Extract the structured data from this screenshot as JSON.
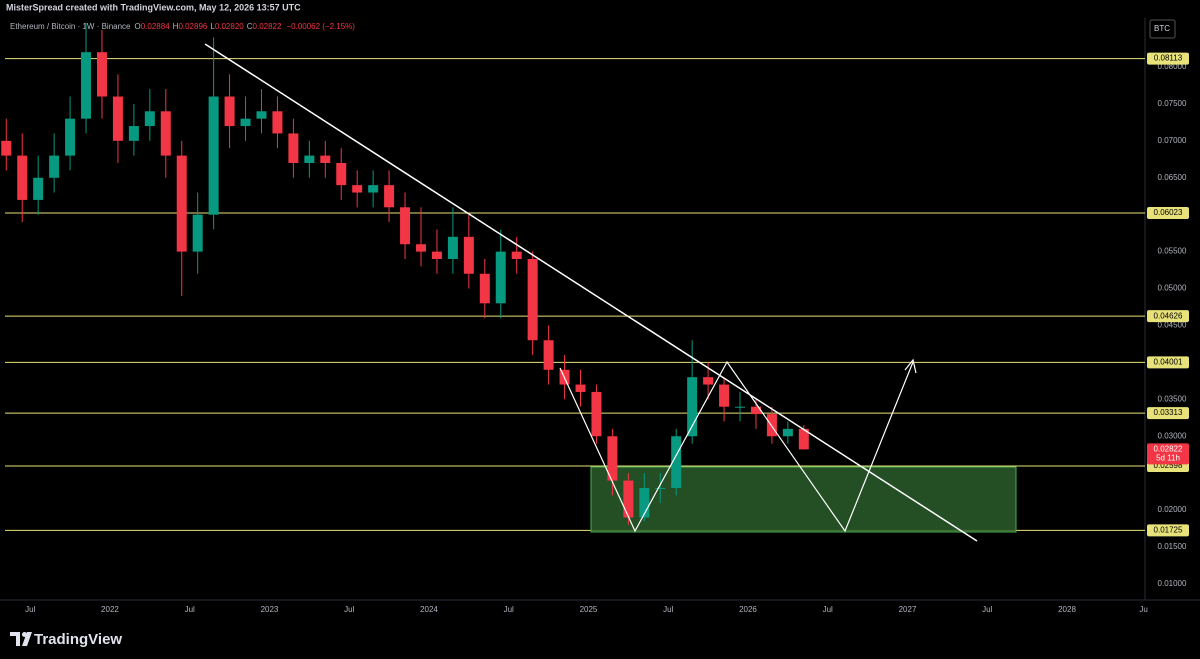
{
  "header": {
    "author_line": "MisterSpread created with TradingView.com, May 12, 2026 13:57 UTC"
  },
  "legend": {
    "symbol": "Ethereum / Bitcoin · 1W · Binance",
    "ohlc": [
      {
        "label": "O",
        "value": "0.02884"
      },
      {
        "label": "H",
        "value": "0.02896"
      },
      {
        "label": "L",
        "value": "0.02820"
      },
      {
        "label": "C",
        "value": "0.02822"
      }
    ],
    "change": "−0.00062 (−2.15%)"
  },
  "currency": "BTC",
  "chart_data": {
    "type": "candlestick",
    "up_color": "#089981",
    "down_color": "#f23645",
    "level_color": "#e8e27a",
    "x": [
      2021.35,
      2021.45,
      2021.55,
      2021.65,
      2021.75,
      2021.85,
      2021.95,
      2022.05,
      2022.15,
      2022.25,
      2022.35,
      2022.45,
      2022.55,
      2022.65,
      2022.75,
      2022.85,
      2022.95,
      2023.05,
      2023.15,
      2023.25,
      2023.35,
      2023.45,
      2023.55,
      2023.65,
      2023.75,
      2023.85,
      2023.95,
      2024.05,
      2024.15,
      2024.25,
      2024.35,
      2024.45,
      2024.55,
      2024.65,
      2024.75,
      2024.85,
      2024.95,
      2025.05,
      2025.15,
      2025.25,
      2025.35,
      2025.45,
      2025.55,
      2025.65,
      2025.75,
      2025.85,
      2025.95,
      2026.05,
      2026.15,
      2026.25,
      2026.35
    ],
    "open": [
      0.07,
      0.068,
      0.062,
      0.065,
      0.068,
      0.073,
      0.082,
      0.076,
      0.07,
      0.072,
      0.074,
      0.068,
      0.055,
      0.06,
      0.076,
      0.072,
      0.073,
      0.074,
      0.071,
      0.067,
      0.068,
      0.067,
      0.064,
      0.063,
      0.064,
      0.061,
      0.056,
      0.055,
      0.054,
      0.057,
      0.052,
      0.048,
      0.055,
      0.054,
      0.043,
      0.039,
      0.037,
      0.036,
      0.03,
      0.024,
      0.019,
      0.023,
      0.023,
      0.03,
      0.038,
      0.037,
      0.034,
      0.034,
      0.033,
      0.03,
      0.031
    ],
    "high": [
      0.073,
      0.071,
      0.068,
      0.071,
      0.076,
      0.086,
      0.085,
      0.079,
      0.075,
      0.077,
      0.077,
      0.07,
      0.063,
      0.084,
      0.079,
      0.076,
      0.077,
      0.076,
      0.073,
      0.07,
      0.07,
      0.069,
      0.066,
      0.066,
      0.066,
      0.063,
      0.061,
      0.058,
      0.061,
      0.06,
      0.054,
      0.058,
      0.057,
      0.055,
      0.045,
      0.041,
      0.039,
      0.037,
      0.031,
      0.025,
      0.025,
      0.025,
      0.031,
      0.043,
      0.04,
      0.038,
      0.036,
      0.035,
      0.034,
      0.032,
      0.0315
    ],
    "low": [
      0.066,
      0.059,
      0.06,
      0.063,
      0.066,
      0.071,
      0.073,
      0.067,
      0.068,
      0.07,
      0.065,
      0.049,
      0.052,
      0.058,
      0.069,
      0.07,
      0.071,
      0.069,
      0.065,
      0.065,
      0.065,
      0.062,
      0.061,
      0.061,
      0.059,
      0.054,
      0.053,
      0.052,
      0.052,
      0.05,
      0.046,
      0.046,
      0.052,
      0.041,
      0.037,
      0.035,
      0.034,
      0.029,
      0.022,
      0.018,
      0.0185,
      0.021,
      0.022,
      0.029,
      0.035,
      0.032,
      0.032,
      0.031,
      0.029,
      0.029,
      0.0282
    ],
    "close": [
      0.068,
      0.062,
      0.065,
      0.068,
      0.073,
      0.082,
      0.076,
      0.07,
      0.072,
      0.074,
      0.068,
      0.055,
      0.06,
      0.076,
      0.072,
      0.073,
      0.074,
      0.071,
      0.067,
      0.068,
      0.067,
      0.064,
      0.063,
      0.064,
      0.061,
      0.056,
      0.055,
      0.054,
      0.057,
      0.052,
      0.048,
      0.055,
      0.054,
      0.043,
      0.039,
      0.037,
      0.036,
      0.03,
      0.024,
      0.019,
      0.023,
      0.023,
      0.03,
      0.038,
      0.037,
      0.034,
      0.034,
      0.033,
      0.03,
      0.031,
      0.02822
    ],
    "xlim": [
      2021.342,
      2028.489
    ],
    "xticks": [
      {
        "value": 2021.5,
        "label": "Jul"
      },
      {
        "value": 2022,
        "label": "2022"
      },
      {
        "value": 2022.5,
        "label": "Jul"
      },
      {
        "value": 2023,
        "label": "2023"
      },
      {
        "value": 2023.5,
        "label": "Jul"
      },
      {
        "value": 2024,
        "label": "2024"
      },
      {
        "value": 2024.5,
        "label": "Jul"
      },
      {
        "value": 2025,
        "label": "2025"
      },
      {
        "value": 2025.5,
        "label": "Jul"
      },
      {
        "value": 2026,
        "label": "2026"
      },
      {
        "value": 2026.5,
        "label": "Jul"
      },
      {
        "value": 2027,
        "label": "2027"
      },
      {
        "value": 2027.5,
        "label": "Jul"
      },
      {
        "value": 2028,
        "label": "2028"
      },
      {
        "value": 2028.48,
        "label": "Ju"
      }
    ],
    "ylim": [
      0.00783,
      0.08663
    ],
    "yticks": [
      {
        "value": 0.08,
        "label": "0.08000"
      },
      {
        "value": 0.075,
        "label": "0.07500"
      },
      {
        "value": 0.07,
        "label": "0.07000"
      },
      {
        "value": 0.065,
        "label": "0.06500"
      },
      {
        "value": 0.055,
        "label": "0.05500"
      },
      {
        "value": 0.05,
        "label": "0.05000"
      },
      {
        "value": 0.045,
        "label": "0.04500"
      },
      {
        "value": 0.035,
        "label": "0.03500"
      },
      {
        "value": 0.03,
        "label": "0.03000"
      },
      {
        "value": 0.02,
        "label": "0.02000"
      },
      {
        "value": 0.015,
        "label": "0.01500"
      },
      {
        "value": 0.01,
        "label": "0.01000"
      }
    ],
    "levels": [
      0.08113,
      0.06023,
      0.04626,
      0.04001,
      0.03313,
      0.02598,
      0.01725
    ],
    "last_price": 0.02822,
    "countdown": "5d 11h"
  },
  "footer": {
    "brand": "TradingView"
  }
}
